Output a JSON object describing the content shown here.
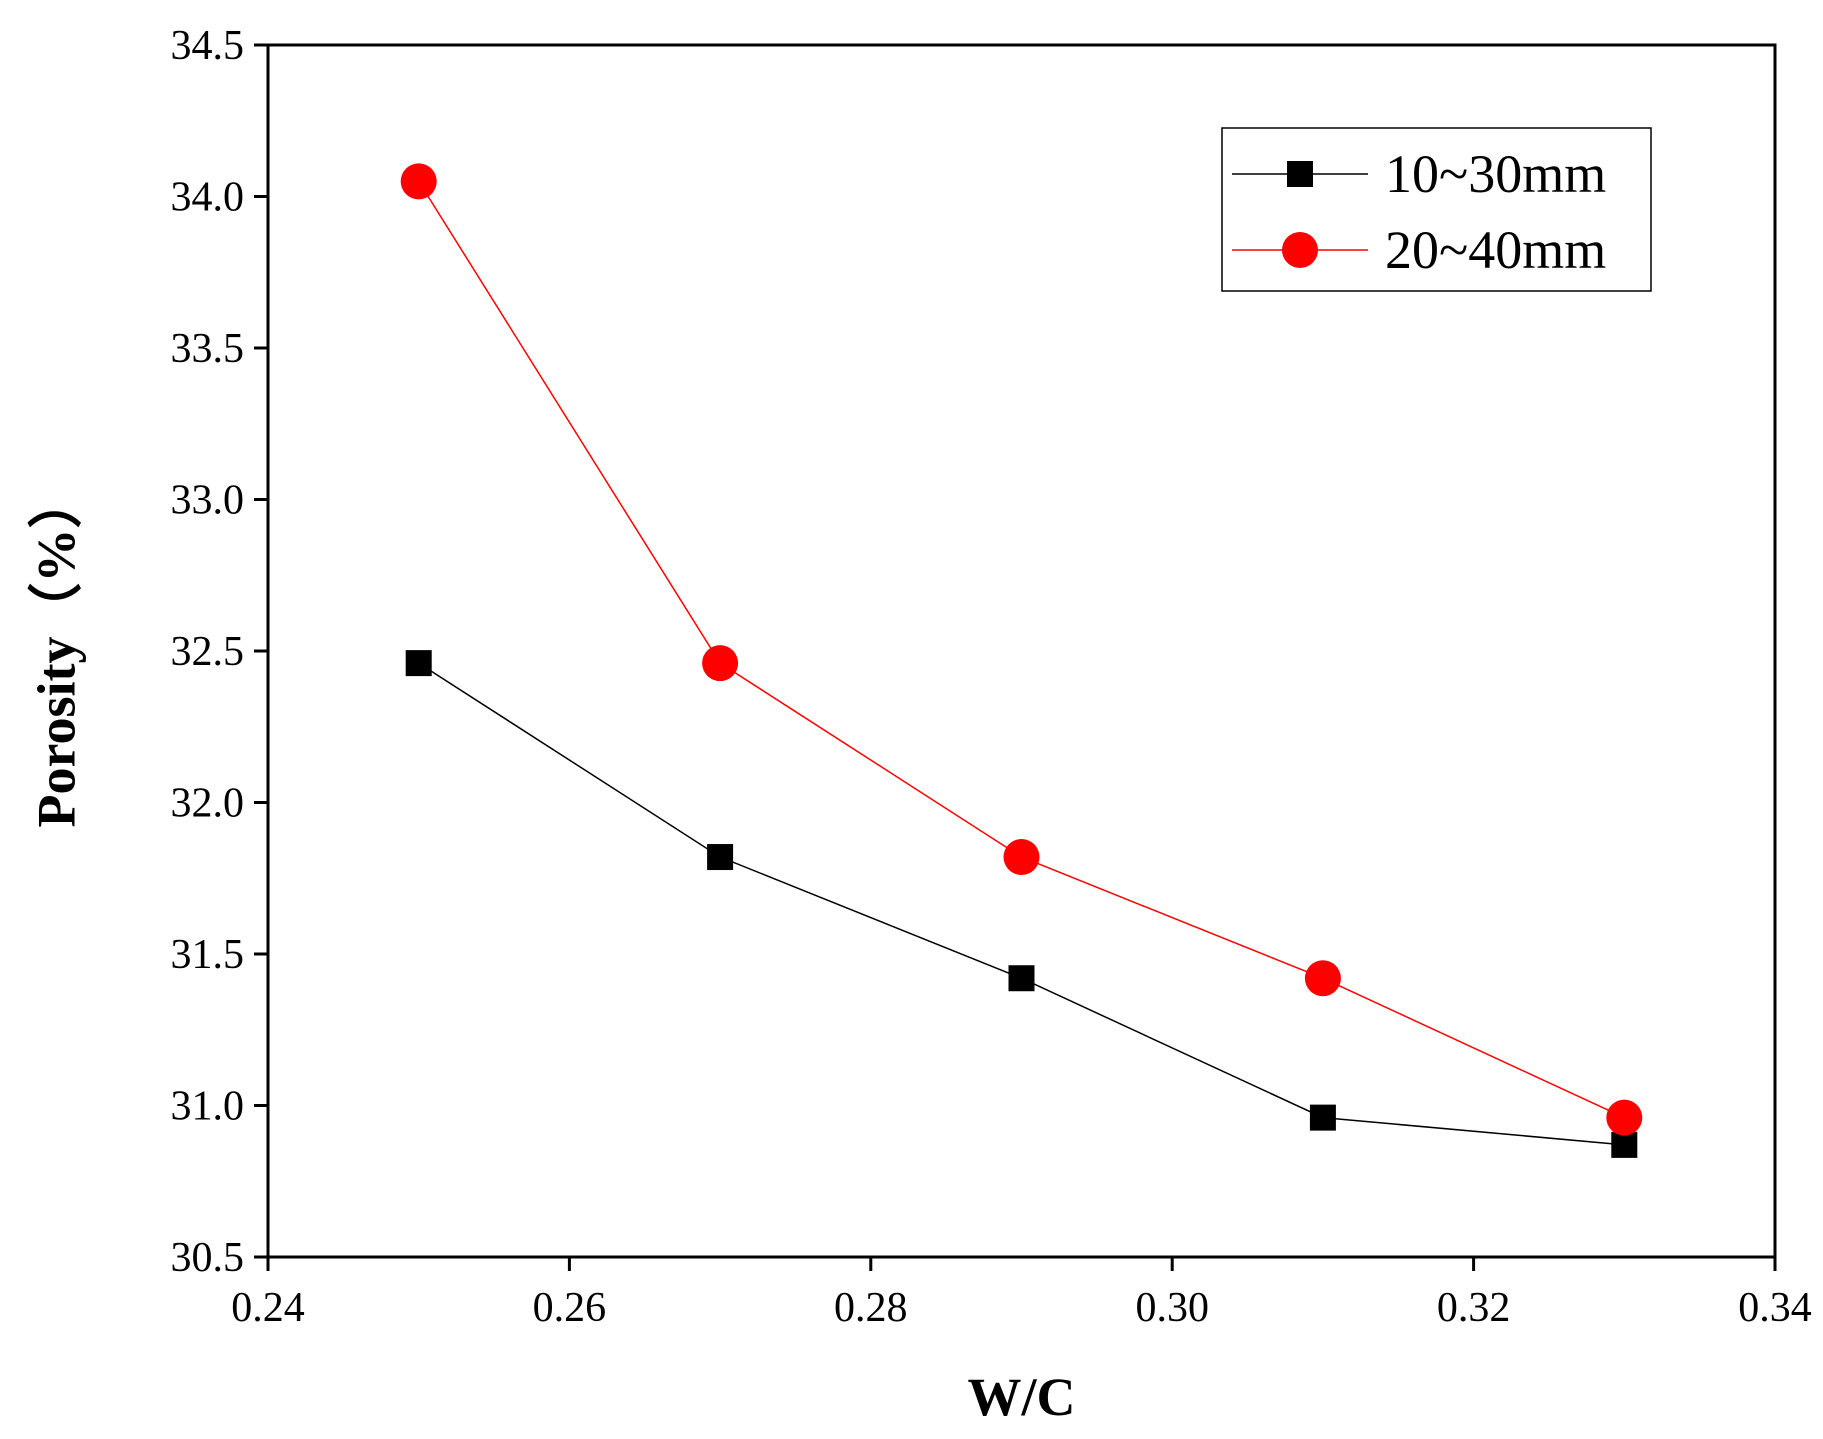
{
  "chart_data": {
    "type": "line",
    "title": "",
    "xlabel": "W/C",
    "ylabel": "Porosity（%）",
    "xlim": [
      0.24,
      0.34
    ],
    "ylim": [
      30.5,
      34.5
    ],
    "xticks": [
      "0.24",
      "0.26",
      "0.28",
      "0.30",
      "0.32",
      "0.34"
    ],
    "yticks": [
      "30.5",
      "31.0",
      "31.5",
      "32.0",
      "32.5",
      "33.0",
      "33.5",
      "34.0",
      "34.5"
    ],
    "x": [
      0.25,
      0.27,
      0.29,
      0.31,
      0.33
    ],
    "series": [
      {
        "name": "10~30mm",
        "marker": "square",
        "color": "#000000",
        "values": [
          32.46,
          31.82,
          31.42,
          30.96,
          30.87
        ]
      },
      {
        "name": "20~40mm",
        "marker": "circle",
        "color": "#ff0000",
        "values": [
          34.05,
          32.46,
          31.82,
          31.42,
          30.96
        ]
      }
    ],
    "legend": "top-right",
    "grid": false
  }
}
